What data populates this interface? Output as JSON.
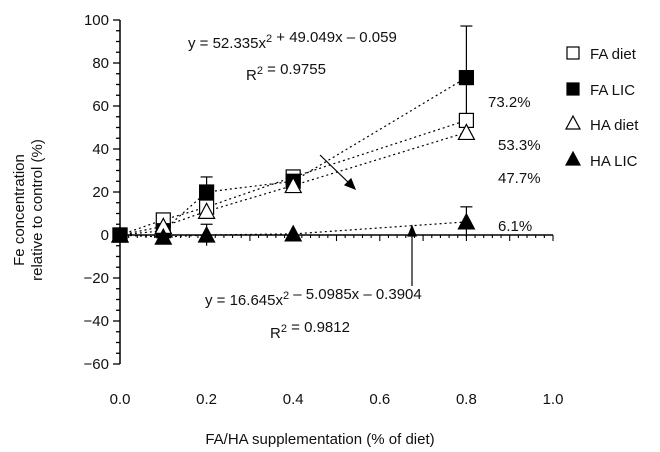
{
  "chart_data": {
    "type": "scatter",
    "xlabel": "FA/HA supplementation (% of diet)",
    "ylabel_lines": [
      "Fe concentration",
      "relative to control (%)"
    ],
    "xlim": [
      0.0,
      1.0
    ],
    "ylim": [
      -60,
      100
    ],
    "x_ticks": [
      0.0,
      0.2,
      0.4,
      0.6,
      0.8,
      1.0
    ],
    "x_tick_labels": [
      "0.0",
      "0.2",
      "0.4",
      "0.6",
      "0.8",
      "1.0"
    ],
    "y_ticks": [
      -60,
      -40,
      -20,
      0,
      20,
      40,
      60,
      80,
      100
    ],
    "y_tick_labels": [
      "−60",
      "−40",
      "−20",
      "0",
      "20",
      "40",
      "60",
      "80",
      "100"
    ],
    "grid": false,
    "legend_position": "right",
    "series": [
      {
        "name": "FA diet",
        "marker": "open-square",
        "x": [
          0.0,
          0.1,
          0.2,
          0.4,
          0.8
        ],
        "y": [
          0,
          7,
          13,
          27,
          53.3
        ],
        "err": [
          0,
          0,
          0,
          3,
          0
        ],
        "end_label": "53.3%"
      },
      {
        "name": "FA LIC",
        "marker": "filled-square",
        "x": [
          0.0,
          0.1,
          0.2,
          0.4,
          0.8
        ],
        "y": [
          0,
          2,
          20,
          25,
          73.2
        ],
        "err": [
          0,
          0,
          7,
          0,
          24
        ],
        "end_label": "73.2%"
      },
      {
        "name": "HA diet",
        "marker": "open-triangle",
        "x": [
          0.0,
          0.1,
          0.2,
          0.4,
          0.8
        ],
        "y": [
          0,
          4,
          11,
          23,
          47.7
        ],
        "err": [
          0,
          0,
          0,
          0,
          0
        ],
        "end_label": "47.7%"
      },
      {
        "name": "HA LIC",
        "marker": "filled-triangle",
        "x": [
          0.0,
          0.1,
          0.2,
          0.4,
          0.8
        ],
        "y": [
          0,
          -1,
          0,
          0.5,
          6.1
        ],
        "err": [
          0,
          0,
          5,
          0,
          7
        ],
        "end_label": "6.1%"
      }
    ],
    "equations": [
      {
        "text": "y = 52.335x² + 49.049x – 0.059",
        "r2": "R² = 0.9755"
      },
      {
        "text": "y = 16.645x² – 5.0985x – 0.3904",
        "r2": "R² = 0.9812"
      }
    ]
  }
}
